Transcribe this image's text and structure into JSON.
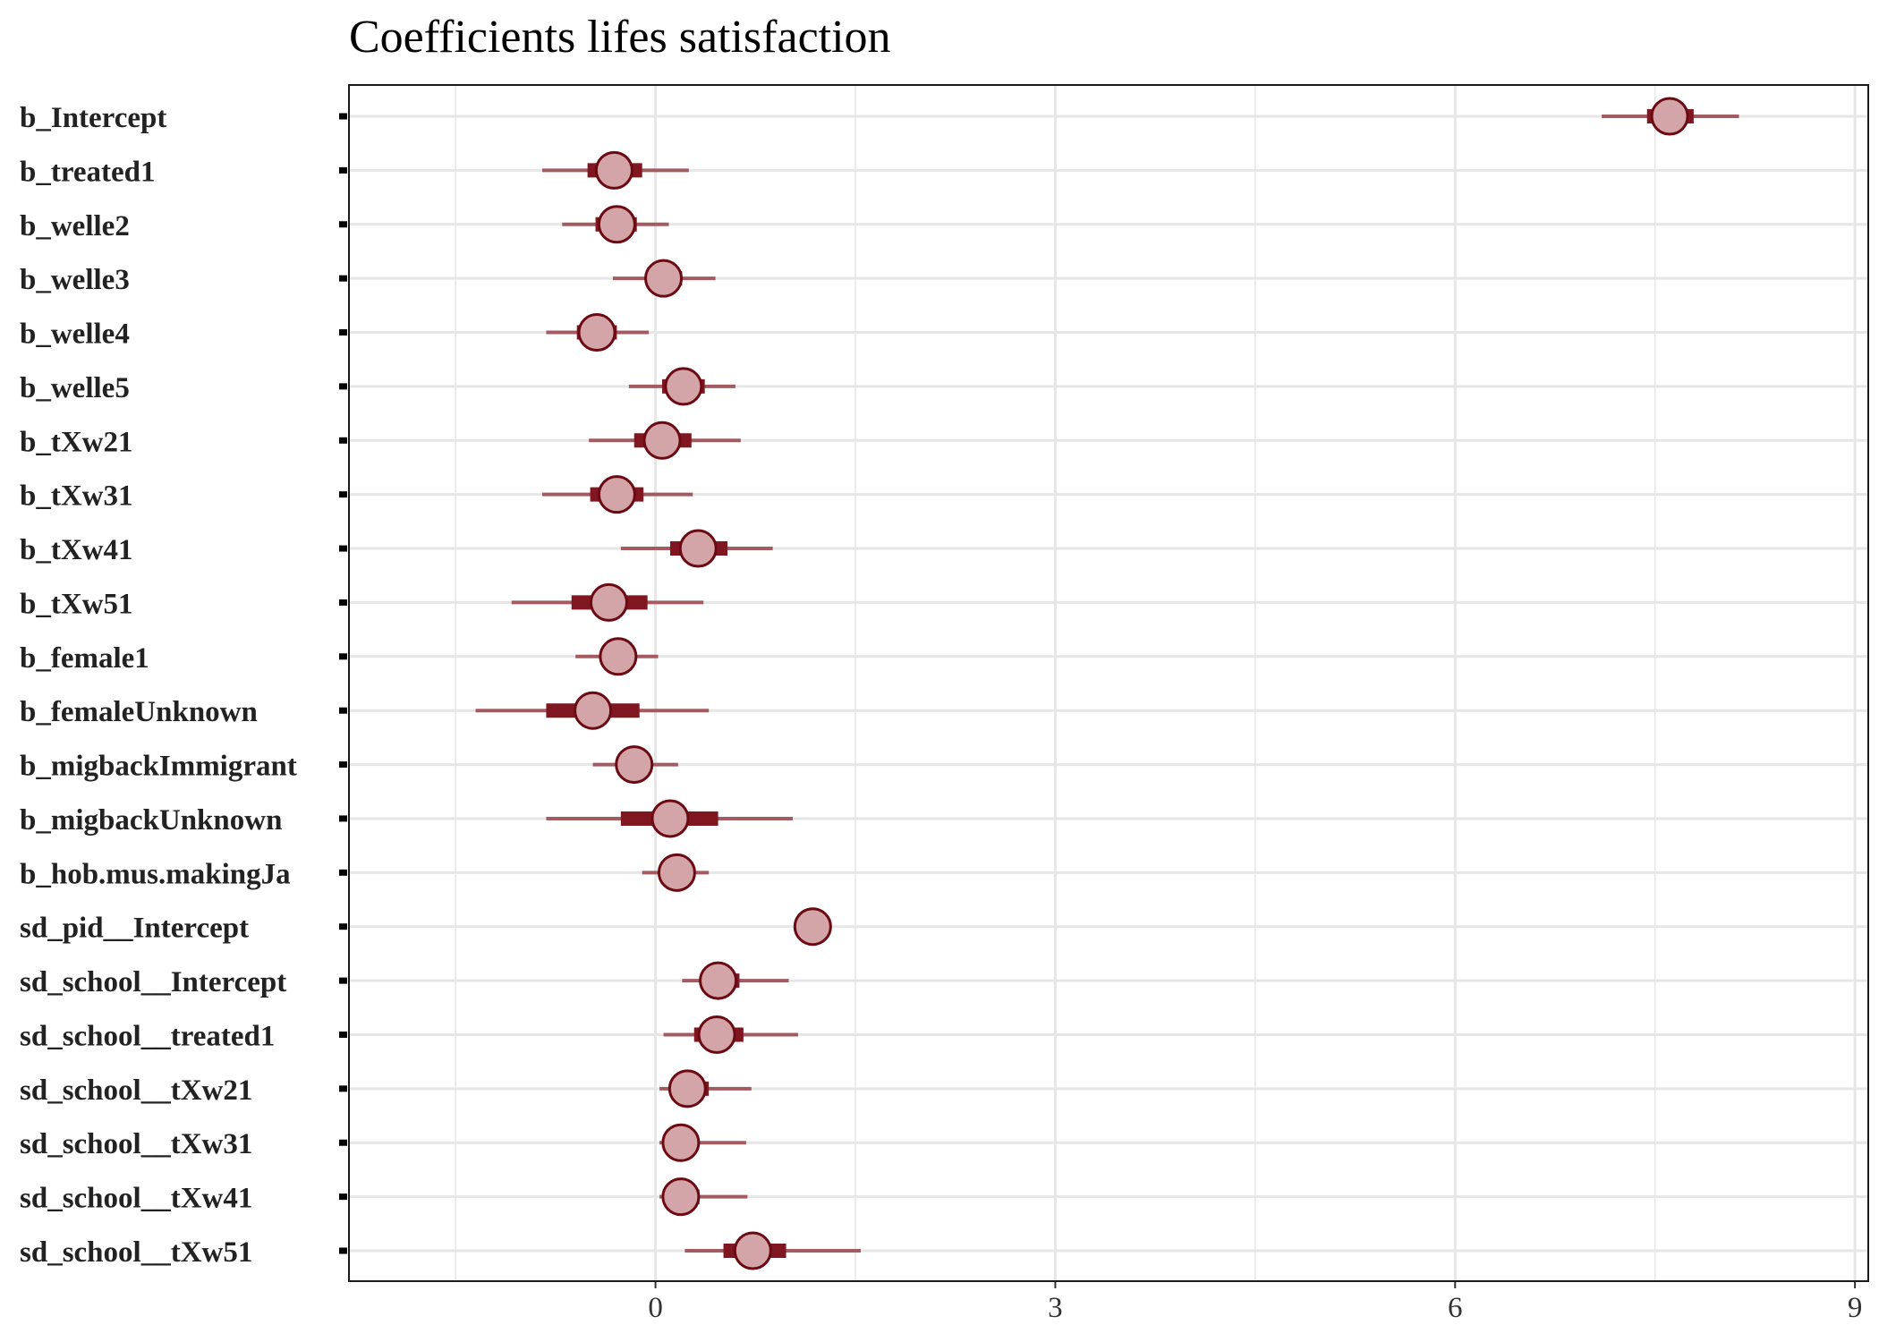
{
  "chart_data": {
    "type": "interval",
    "title": "Coefficients lifes satisfaction",
    "xlabel": "",
    "ylabel": "",
    "xlim": [
      -2.3,
      9.1
    ],
    "x_ticks": [
      0,
      3,
      6,
      9
    ],
    "x_tick_labels": [
      "0",
      "3",
      "6",
      "9"
    ],
    "grid": true,
    "legend": "none",
    "colors": {
      "point_fill": "#d4a5a8",
      "point_stroke": "#6b0a12",
      "inner_interval": "#7f1620",
      "outer_interval": "#a35b61",
      "grid": "#e6e6e6"
    },
    "parameters": [
      {
        "name": "b_Intercept",
        "estimate": 7.61,
        "inner": [
          7.44,
          7.79
        ],
        "outer": [
          7.1,
          8.13
        ]
      },
      {
        "name": "b_treated1",
        "estimate": -0.31,
        "inner": [
          -0.51,
          -0.1
        ],
        "outer": [
          -0.85,
          0.25
        ]
      },
      {
        "name": "b_welle2",
        "estimate": -0.29,
        "inner": [
          -0.45,
          -0.14
        ],
        "outer": [
          -0.7,
          0.1
        ]
      },
      {
        "name": "b_welle3",
        "estimate": 0.06,
        "inner": [
          -0.07,
          0.2
        ],
        "outer": [
          -0.32,
          0.45
        ]
      },
      {
        "name": "b_welle4",
        "estimate": -0.44,
        "inner": [
          -0.59,
          -0.29
        ],
        "outer": [
          -0.82,
          -0.05
        ]
      },
      {
        "name": "b_welle5",
        "estimate": 0.21,
        "inner": [
          0.05,
          0.37
        ],
        "outer": [
          -0.2,
          0.6
        ]
      },
      {
        "name": "b_tXw21",
        "estimate": 0.05,
        "inner": [
          -0.16,
          0.27
        ],
        "outer": [
          -0.5,
          0.64
        ]
      },
      {
        "name": "b_tXw31",
        "estimate": -0.29,
        "inner": [
          -0.49,
          -0.09
        ],
        "outer": [
          -0.85,
          0.28
        ]
      },
      {
        "name": "b_tXw41",
        "estimate": 0.32,
        "inner": [
          0.11,
          0.54
        ],
        "outer": [
          -0.26,
          0.88
        ]
      },
      {
        "name": "b_tXw51",
        "estimate": -0.35,
        "inner": [
          -0.63,
          -0.06
        ],
        "outer": [
          -1.08,
          0.36
        ]
      },
      {
        "name": "b_female1",
        "estimate": -0.28,
        "inner": [
          -0.4,
          -0.17
        ],
        "outer": [
          -0.6,
          0.02
        ]
      },
      {
        "name": "b_femaleUnknown",
        "estimate": -0.47,
        "inner": [
          -0.82,
          -0.12
        ],
        "outer": [
          -1.35,
          0.4
        ]
      },
      {
        "name": "b_migbackImmigrant",
        "estimate": -0.16,
        "inner": [
          -0.28,
          -0.04
        ],
        "outer": [
          -0.47,
          0.17
        ]
      },
      {
        "name": "b_migbackUnknown",
        "estimate": 0.11,
        "inner": [
          -0.26,
          0.47
        ],
        "outer": [
          -0.82,
          1.03
        ]
      },
      {
        "name": "b_hob.mus.makingJa",
        "estimate": 0.16,
        "inner": [
          0.06,
          0.26
        ],
        "outer": [
          -0.1,
          0.4
        ]
      },
      {
        "name": "sd_pid__Intercept",
        "estimate": 1.18,
        "inner": [
          1.15,
          1.21
        ],
        "outer": [
          1.12,
          1.24
        ]
      },
      {
        "name": "sd_school__Intercept",
        "estimate": 0.47,
        "inner": [
          0.35,
          0.63
        ],
        "outer": [
          0.2,
          1.0
        ]
      },
      {
        "name": "sd_school__treated1",
        "estimate": 0.46,
        "inner": [
          0.29,
          0.66
        ],
        "outer": [
          0.06,
          1.07
        ]
      },
      {
        "name": "sd_school__tXw21",
        "estimate": 0.24,
        "inner": [
          0.12,
          0.4
        ],
        "outer": [
          0.03,
          0.72
        ]
      },
      {
        "name": "sd_school__tXw31",
        "estimate": 0.19,
        "inner": [
          0.09,
          0.32
        ],
        "outer": [
          0.03,
          0.68
        ]
      },
      {
        "name": "sd_school__tXw41",
        "estimate": 0.19,
        "inner": [
          0.09,
          0.33
        ],
        "outer": [
          0.03,
          0.69
        ]
      },
      {
        "name": "sd_school__tXw51",
        "estimate": 0.73,
        "inner": [
          0.51,
          0.98
        ],
        "outer": [
          0.22,
          1.54
        ]
      }
    ]
  }
}
